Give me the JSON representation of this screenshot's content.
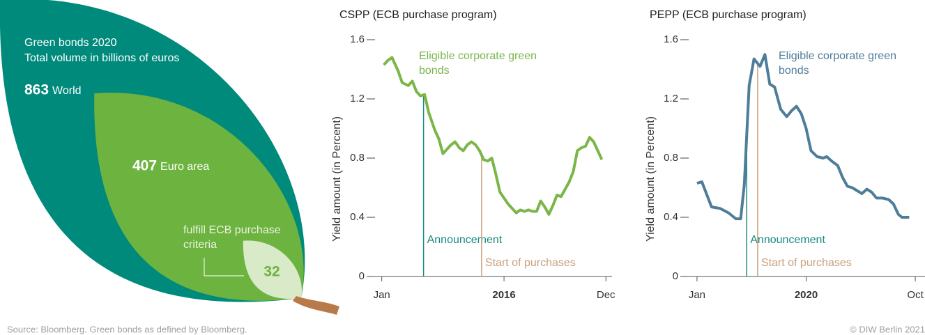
{
  "chart_data": [
    {
      "type": "leaf",
      "title": "Green bonds 2020",
      "subtitle": "Total volume in billions of euros",
      "categories": [
        "World",
        "Euro area",
        "fulfill ECB purchase criteria"
      ],
      "values": [
        863,
        407,
        32
      ],
      "colors": [
        "#008a7b",
        "#6db33f",
        "#d9eac8"
      ]
    },
    {
      "type": "line",
      "title": "CSPP (ECB purchase program)",
      "y_label": "Yield amount (in Percent)",
      "x": [
        0.1,
        0.3,
        0.5,
        0.8,
        1.0,
        1.3,
        1.5,
        1.7,
        1.9,
        2.1,
        2.3,
        2.6,
        2.8,
        3.0,
        3.2,
        3.4,
        3.6,
        3.8,
        4.0,
        4.2,
        4.4,
        4.6,
        4.8,
        5.0,
        5.2,
        5.4,
        5.6,
        5.8,
        6.0,
        6.2,
        6.4,
        6.6,
        6.8,
        7.0,
        7.2,
        7.4,
        7.6,
        7.8,
        8.0,
        8.2,
        8.4,
        8.6,
        8.8,
        9.0,
        9.2,
        9.4,
        9.6,
        9.8,
        10.0,
        10.2,
        10.4,
        10.6,
        10.8
      ],
      "series": [
        {
          "name": "Eligible corporate green bonds",
          "color": "#7ab648",
          "values": [
            1.43,
            1.46,
            1.48,
            1.39,
            1.31,
            1.29,
            1.32,
            1.25,
            1.22,
            1.23,
            1.11,
            0.99,
            0.93,
            0.83,
            0.86,
            0.89,
            0.91,
            0.87,
            0.85,
            0.89,
            0.91,
            0.89,
            0.85,
            0.79,
            0.78,
            0.8,
            0.69,
            0.57,
            0.53,
            0.49,
            0.46,
            0.43,
            0.45,
            0.44,
            0.45,
            0.44,
            0.44,
            0.51,
            0.47,
            0.42,
            0.48,
            0.55,
            0.54,
            0.59,
            0.64,
            0.71,
            0.85,
            0.87,
            0.88,
            0.94,
            0.91,
            0.85,
            0.79
          ]
        }
      ],
      "xlim": [
        -0.4,
        11.3
      ],
      "xticks": [
        {
          "value": 0,
          "label": "Jan"
        },
        {
          "value": 6,
          "label": "2016"
        },
        {
          "value": 11,
          "label": "Dec"
        }
      ],
      "ylim": [
        0,
        1.6
      ],
      "yticks": [
        0,
        0.4,
        0.8,
        1.2,
        1.6
      ],
      "events": [
        {
          "label": "Announcement",
          "x": 2.05,
          "color": "#1a8a80"
        },
        {
          "label": "Start of purchases",
          "x": 4.9,
          "color": "#c9a07c"
        }
      ]
    },
    {
      "type": "line",
      "title": "PEPP (ECB purchase program)",
      "y_label": "Yield amount (in Percent)",
      "x": [
        0,
        0.2,
        0.6,
        0.95,
        1.3,
        1.6,
        1.8,
        1.95,
        2.15,
        2.35,
        2.6,
        2.8,
        3.0,
        3.2,
        3.45,
        3.7,
        3.9,
        4.1,
        4.3,
        4.5,
        4.7,
        4.95,
        5.2,
        5.35,
        5.55,
        5.8,
        6.0,
        6.2,
        6.4,
        6.6,
        6.8,
        7.0,
        7.2,
        7.4,
        7.65,
        7.9,
        8.1,
        8.3,
        8.45,
        8.6,
        8.75
      ],
      "series": [
        {
          "name": "Eligible corporate green bonds",
          "color": "#4e7d99",
          "values": [
            0.63,
            0.64,
            0.47,
            0.46,
            0.43,
            0.39,
            0.39,
            0.62,
            1.29,
            1.47,
            1.42,
            1.5,
            1.3,
            1.28,
            1.13,
            1.08,
            1.12,
            1.15,
            1.1,
            1.0,
            0.85,
            0.81,
            0.8,
            0.81,
            0.78,
            0.75,
            0.67,
            0.61,
            0.6,
            0.58,
            0.56,
            0.59,
            0.57,
            0.53,
            0.53,
            0.52,
            0.49,
            0.42,
            0.4,
            0.4,
            0.4
          ]
        }
      ],
      "xlim": [
        -0.4,
        9.4
      ],
      "xticks": [
        {
          "value": 0,
          "label": "Jan"
        },
        {
          "value": 4.5,
          "label": "2020"
        },
        {
          "value": 9,
          "label": "Oct"
        }
      ],
      "ylim": [
        0,
        1.6
      ],
      "yticks": [
        0,
        0.4,
        0.8,
        1.2,
        1.6
      ],
      "events": [
        {
          "label": "Announcement",
          "x": 2.05,
          "color": "#1a8a80"
        },
        {
          "label": "Start of purchases",
          "x": 2.5,
          "color": "#c9a07c"
        }
      ]
    }
  ],
  "source": "Source:  Bloomberg. Green bonds as defined by Bloomberg.",
  "copyright": "© DIW Berlin 2021"
}
